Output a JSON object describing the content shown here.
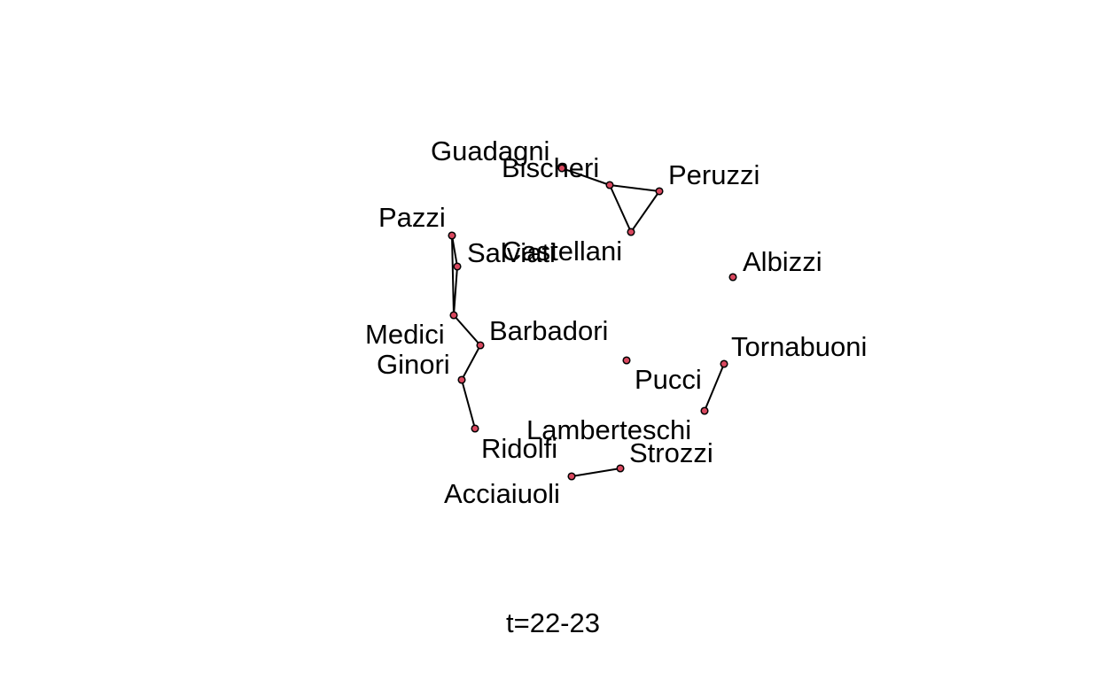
{
  "caption": "t=22-23",
  "node_color": "#d9485f",
  "nodes": [
    {
      "id": "Guadagni",
      "label": "Guadagni"
    },
    {
      "id": "Bischeri",
      "label": "Bischeri"
    },
    {
      "id": "Peruzzi",
      "label": "Peruzzi"
    },
    {
      "id": "Castellani",
      "label": "Castellani"
    },
    {
      "id": "Albizzi",
      "label": "Albizzi"
    },
    {
      "id": "Pazzi",
      "label": "Pazzi"
    },
    {
      "id": "Salviati",
      "label": "Salviati"
    },
    {
      "id": "Medici",
      "label": "Medici"
    },
    {
      "id": "Barbadori",
      "label": "Barbadori"
    },
    {
      "id": "Ginori",
      "label": "Ginori"
    },
    {
      "id": "Ridolfi",
      "label": "Ridolfi"
    },
    {
      "id": "Pucci",
      "label": "Pucci"
    },
    {
      "id": "Tornabuoni",
      "label": "Tornabuoni"
    },
    {
      "id": "Lamberteschi",
      "label": "Lamberteschi"
    },
    {
      "id": "Strozzi",
      "label": "Strozzi"
    },
    {
      "id": "Acciaiuoli",
      "label": "Acciaiuoli"
    }
  ],
  "edges": [
    [
      "Guadagni",
      "Bischeri"
    ],
    [
      "Bischeri",
      "Peruzzi"
    ],
    [
      "Bischeri",
      "Castellani"
    ],
    [
      "Peruzzi",
      "Castellani"
    ],
    [
      "Pazzi",
      "Salviati"
    ],
    [
      "Pazzi",
      "Medici"
    ],
    [
      "Salviati",
      "Medici"
    ],
    [
      "Medici",
      "Barbadori"
    ],
    [
      "Barbadori",
      "Ginori"
    ],
    [
      "Ginori",
      "Ridolfi"
    ],
    [
      "Tornabuoni",
      "Lamberteschi"
    ],
    [
      "Strozzi",
      "Acciaiuoli"
    ]
  ]
}
